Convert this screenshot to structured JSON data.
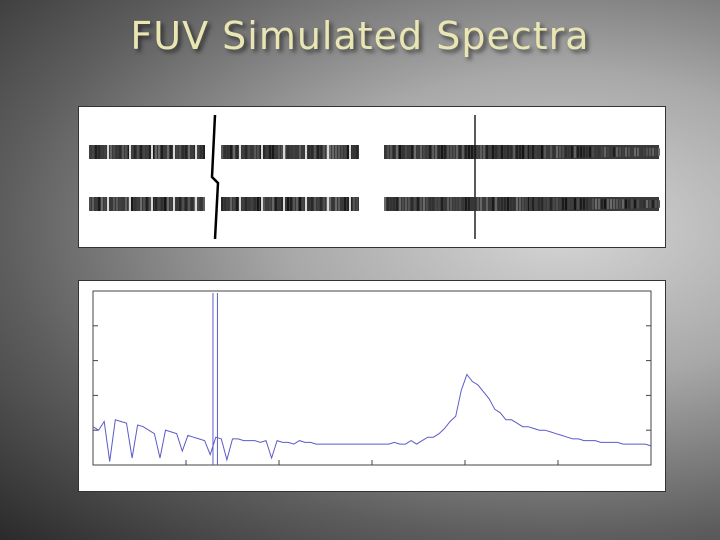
{
  "slide": {
    "title": "FUV Simulated Spectra"
  },
  "spectra_image": {
    "rows": 2,
    "description_segments": 4
  },
  "chart_data": {
    "type": "line",
    "title": "",
    "xlabel": "",
    "ylabel": "",
    "xlim": [
      0,
      100
    ],
    "ylim": [
      0,
      100
    ],
    "grid": false,
    "legend": "none",
    "line_color": "#5b5bc8",
    "series": [
      {
        "x": [
          0,
          1,
          2,
          3,
          4,
          5,
          6,
          7,
          8,
          9,
          10,
          11,
          12,
          13,
          14,
          15,
          16,
          17,
          18,
          19,
          20,
          21,
          22,
          23,
          24,
          25,
          26,
          27,
          28,
          29,
          30,
          31,
          32,
          33,
          34,
          35,
          36,
          37,
          38,
          39,
          40,
          41,
          42,
          43,
          44,
          45,
          46,
          47,
          48,
          49,
          50,
          51,
          52,
          53,
          54,
          55,
          56,
          57,
          58,
          59,
          60,
          61,
          62,
          63,
          64,
          65,
          66,
          67,
          68,
          69,
          70,
          71,
          72,
          73,
          74,
          75,
          76,
          77,
          78,
          79,
          80,
          81,
          82,
          83,
          84,
          85,
          86,
          87,
          88,
          89,
          90,
          91,
          92,
          93,
          94,
          95,
          96,
          97,
          98,
          99,
          100
        ],
        "y": [
          22,
          20,
          25,
          2,
          26,
          25,
          24,
          4,
          23,
          22,
          20,
          18,
          4,
          20,
          19,
          18,
          8,
          17,
          16,
          15,
          14,
          6,
          16,
          15,
          3,
          15,
          15,
          14,
          14,
          14,
          13,
          14,
          4,
          14,
          13,
          13,
          12,
          14,
          13,
          13,
          12,
          12,
          12,
          12,
          12,
          12,
          12,
          12,
          12,
          12,
          12,
          12,
          12,
          12,
          13,
          12,
          12,
          14,
          12,
          14,
          16,
          16,
          18,
          21,
          25,
          28,
          43,
          52,
          48,
          46,
          42,
          38,
          32,
          30,
          26,
          26,
          24,
          22,
          22,
          21,
          20,
          20,
          19,
          18,
          17,
          16,
          15,
          15,
          14,
          14,
          14,
          13,
          13,
          13,
          13,
          12,
          12,
          12,
          12,
          12,
          11
        ]
      }
    ]
  }
}
